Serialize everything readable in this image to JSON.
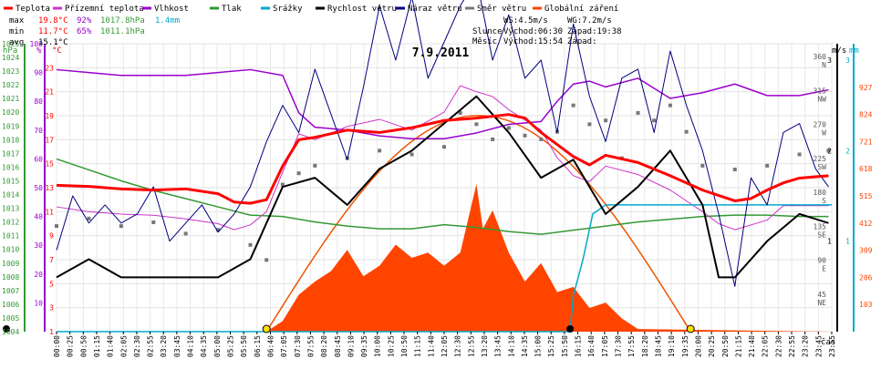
{
  "chart_data": {
    "type": "line",
    "title": "7.9.2011",
    "legend": [
      {
        "label": "Teplota",
        "color": "#ff0000"
      },
      {
        "label": "Přízemní teplota",
        "color": "#cc33cc"
      },
      {
        "label": "Vlhkost",
        "color": "#9900cc"
      },
      {
        "label": "Tlak",
        "color": "#339933"
      },
      {
        "label": "Srážky",
        "color": "#00aacc"
      },
      {
        "label": "Rychlost větru",
        "color": "#000000"
      },
      {
        "label": "Náraz větru",
        "color": "#000080"
      },
      {
        "label": "Směr větru",
        "color": "#777777"
      },
      {
        "label": "Globální záření",
        "color": "#ff4400"
      }
    ],
    "stats": {
      "max": {
        "label": "max",
        "temp": "19.8°C",
        "hum": "92%",
        "pres": "1017.8hPa",
        "rain": "1.4mm"
      },
      "min": {
        "label": "min",
        "temp": "11.7°C",
        "hum": "65%",
        "pres": "1011.1hPa"
      },
      "avg": {
        "label": "avg",
        "temp": "15.1°C"
      }
    },
    "info": {
      "ws": "WS:4.5m/s",
      "wg": "WG:7.2m/s",
      "sun_label": "Slunce",
      "sunrise": "Východ:06:30",
      "sunset": "Západ:19:38",
      "moon_label": "Měsíc",
      "moonrise": "Východ:15:54",
      "moonset": "Západ:"
    },
    "axes": {
      "hpa": {
        "unit": "hPa",
        "ticks": [
          "1004",
          "1005",
          "1006",
          "1007",
          "1008",
          "1009",
          "1010",
          "1011",
          "1012",
          "1013",
          "1014",
          "1015",
          "1016",
          "1017",
          "1018",
          "1019",
          "1020",
          "1021",
          "1022",
          "1023",
          "1024",
          "1025"
        ],
        "range": [
          1004,
          1025
        ]
      },
      "pct": {
        "unit": "%",
        "ticks": [
          "10",
          "20",
          "30",
          "40",
          "50",
          "60",
          "70",
          "80",
          "90",
          "100"
        ],
        "range": [
          0,
          100
        ]
      },
      "temp": {
        "unit": "°C",
        "ticks": [
          "1",
          "3",
          "5",
          "7",
          "9",
          "11",
          "13",
          "15",
          "17",
          "19",
          "21",
          "23"
        ],
        "range": [
          1,
          25
        ]
      },
      "wind": {
        "unit": "m/s",
        "ticks": [
          "1",
          "2",
          "3"
        ]
      },
      "rain": {
        "unit": "mm",
        "ticks": [
          "1",
          "2",
          "3"
        ]
      },
      "dir": {
        "ticks": [
          "45 NE",
          "90 E",
          "135 SE",
          "180 S",
          "225 SW",
          "270 W",
          "315 NW",
          "360 N"
        ]
      },
      "rad": {
        "ticks": [
          "103",
          "206",
          "309",
          "412",
          "515",
          "618",
          "721",
          "824",
          "927"
        ]
      },
      "time": {
        "unit": "čas",
        "ticks": [
          "00:00",
          "00:25",
          "00:50",
          "01:15",
          "01:40",
          "02:05",
          "02:30",
          "02:55",
          "03:20",
          "03:45",
          "04:10",
          "04:35",
          "05:00",
          "05:25",
          "05:50",
          "06:15",
          "06:40",
          "07:05",
          "07:30",
          "07:55",
          "08:20",
          "08:45",
          "09:10",
          "09:35",
          "10:00",
          "10:25",
          "10:50",
          "11:15",
          "11:40",
          "12:05",
          "12:30",
          "12:55",
          "13:20",
          "13:45",
          "14:10",
          "14:35",
          "15:00",
          "15:25",
          "15:50",
          "16:15",
          "16:40",
          "17:05",
          "17:30",
          "17:55",
          "18:20",
          "18:45",
          "19:10",
          "19:35",
          "20:00",
          "20:25",
          "20:50",
          "21:15",
          "21:40",
          "22:05",
          "22:30",
          "22:55",
          "23:20",
          "23:45",
          "23:55"
        ]
      }
    },
    "grid": true,
    "series": [
      {
        "name": "Teplota",
        "color": "#ff0000",
        "x": [
          0,
          1,
          2,
          3,
          4,
          5,
          5.5,
          6,
          6.5,
          7,
          7.5,
          8,
          9,
          10,
          11,
          12,
          13,
          14,
          14.5,
          15,
          16,
          16.5,
          17,
          18,
          19,
          20,
          21,
          21.5,
          22,
          22.5,
          23,
          23.9
        ],
        "y": [
          13.2,
          13.1,
          12.9,
          12.8,
          12.9,
          12.5,
          11.8,
          11.7,
          12.0,
          14.8,
          17.0,
          17.2,
          17.8,
          17.6,
          18.0,
          18.6,
          18.8,
          19.1,
          18.8,
          17.6,
          15.6,
          14.9,
          15.7,
          15.1,
          14.0,
          12.8,
          11.9,
          12.1,
          12.8,
          13.4,
          13.8,
          14.0
        ]
      },
      {
        "name": "Přízemní teplota",
        "color": "#cc33cc",
        "x": [
          0,
          1,
          2,
          3,
          4,
          5,
          5.5,
          6,
          6.5,
          7,
          7.5,
          8,
          9,
          10,
          11,
          12,
          12.5,
          13,
          13.5,
          14,
          15,
          15.5,
          16,
          16.5,
          17,
          18,
          19,
          20,
          20.5,
          21,
          22,
          22.5,
          23,
          23.9
        ],
        "y": [
          11.4,
          11.0,
          10.8,
          10.7,
          10.4,
          10.0,
          9.5,
          9.9,
          11.0,
          14.3,
          17.5,
          17.0,
          18.1,
          18.7,
          17.8,
          19.3,
          21.5,
          21.0,
          20.6,
          19.5,
          17.8,
          15.5,
          14.0,
          13.5,
          14.8,
          14.1,
          12.8,
          11.0,
          10.0,
          9.5,
          10.3,
          11.5,
          11.5,
          11.5
        ]
      },
      {
        "name": "Vlhkost",
        "color": "#9900cc",
        "x": [
          0,
          1,
          2,
          3,
          4,
          5,
          6,
          7,
          7.5,
          8,
          9,
          10,
          11,
          12,
          13,
          14,
          15,
          15.5,
          16,
          16.5,
          17,
          18,
          19,
          20,
          21,
          22,
          23,
          23.9
        ],
        "y": [
          91,
          90,
          89,
          89,
          89,
          90,
          91,
          89,
          76,
          71,
          70,
          68,
          67,
          67,
          69,
          72,
          73,
          80,
          86,
          87,
          85,
          88,
          81,
          83,
          86,
          82,
          82,
          84
        ]
      },
      {
        "name": "Tlak",
        "color": "#339933",
        "x": [
          0,
          1,
          2,
          3,
          4,
          5,
          6,
          7,
          8,
          9,
          10,
          11,
          12,
          13,
          14,
          15,
          16,
          17,
          18,
          19,
          20,
          21,
          22,
          23,
          23.9
        ],
        "y": [
          1016.6,
          1015.8,
          1015.0,
          1014.3,
          1013.7,
          1013.1,
          1012.5,
          1012.4,
          1012.0,
          1011.7,
          1011.5,
          1011.5,
          1011.8,
          1011.6,
          1011.3,
          1011.1,
          1011.4,
          1011.7,
          1012.0,
          1012.2,
          1012.4,
          1012.5,
          1012.5,
          1012.4,
          1012.4
        ]
      },
      {
        "name": "Srážky",
        "color": "#00aacc",
        "x": [
          0,
          15.9,
          16.0,
          16.3,
          16.6,
          17.0,
          17.5,
          24
        ],
        "y": [
          0,
          0,
          0.4,
          0.8,
          1.3,
          1.4,
          1.4,
          1.4
        ]
      },
      {
        "name": "Rychlost větru",
        "color": "#000000",
        "x": [
          0,
          1,
          2,
          3,
          4,
          5,
          6,
          7,
          8,
          9,
          10,
          11,
          12,
          13,
          14,
          15,
          16,
          17,
          18,
          19,
          20,
          20.5,
          21,
          22,
          23,
          23.9
        ],
        "y": [
          0.6,
          0.8,
          0.6,
          0.6,
          0.6,
          0.6,
          0.8,
          1.6,
          1.7,
          1.4,
          1.8,
          2.0,
          2.3,
          2.6,
          2.2,
          1.7,
          1.9,
          1.3,
          1.6,
          2.0,
          1.4,
          0.6,
          0.6,
          1.0,
          1.3,
          1.2
        ]
      },
      {
        "name": "Náraz větru",
        "color": "#000080",
        "x": [
          0,
          0.5,
          1,
          1.5,
          2,
          2.5,
          3,
          3.5,
          4,
          4.5,
          5,
          5.5,
          6,
          6.5,
          7,
          7.5,
          8,
          8.5,
          9,
          9.5,
          10,
          10.5,
          11,
          11.5,
          12,
          12.5,
          13,
          13.5,
          14,
          14.5,
          15,
          15.5,
          16,
          16.5,
          17,
          17.5,
          18,
          18.5,
          19,
          19.5,
          20,
          20.5,
          21,
          21.5,
          22,
          22.5,
          23,
          23.5,
          23.9
        ],
        "y": [
          0.9,
          1.5,
          1.2,
          1.4,
          1.2,
          1.3,
          1.6,
          1.0,
          1.2,
          1.4,
          1.1,
          1.3,
          1.6,
          2.1,
          2.5,
          2.2,
          2.9,
          2.4,
          1.9,
          2.7,
          3.6,
          3.0,
          3.7,
          2.8,
          3.2,
          3.6,
          3.9,
          3.0,
          3.5,
          2.8,
          3.0,
          2.2,
          3.4,
          2.6,
          2.1,
          2.8,
          2.9,
          2.2,
          3.1,
          2.5,
          2.0,
          1.3,
          0.5,
          1.7,
          1.4,
          2.2,
          2.3,
          1.8,
          1.6
        ]
      },
      {
        "name": "Globální záření",
        "color": "#ff4400",
        "x": [
          0,
          6.5,
          7,
          7.5,
          8,
          8.5,
          9,
          9.5,
          10,
          10.5,
          11,
          11.5,
          12,
          12.5,
          13,
          13.2,
          13.5,
          14,
          14.5,
          15,
          15.5,
          16,
          16.5,
          17,
          17.5,
          18,
          24
        ],
        "y": [
          0,
          0,
          40,
          140,
          190,
          230,
          310,
          210,
          250,
          330,
          280,
          300,
          250,
          300,
          560,
          390,
          460,
          300,
          190,
          260,
          150,
          170,
          90,
          110,
          50,
          10,
          0
        ]
      },
      {
        "name": "Směr větru",
        "color": "#777777",
        "x": [
          0,
          1,
          2,
          3,
          4,
          5,
          6,
          6.5,
          7,
          7.5,
          8,
          9,
          10,
          11,
          12,
          12.5,
          13,
          13.5,
          14,
          14.5,
          15,
          15.5,
          16,
          16.5,
          17,
          17.5,
          18,
          18.5,
          19,
          19.5,
          20,
          21,
          22,
          23,
          23.9
        ],
        "y": [
          140,
          150,
          140,
          145,
          130,
          135,
          115,
          95,
          195,
          210,
          220,
          230,
          240,
          235,
          245,
          290,
          275,
          255,
          270,
          260,
          255,
          265,
          300,
          275,
          280,
          230,
          290,
          280,
          300,
          265,
          220,
          215,
          220,
          235,
          240
        ]
      }
    ],
    "markers": {
      "sunrise_x": 6.5,
      "sunset_x": 19.63,
      "moon_x": 15.9
    }
  }
}
